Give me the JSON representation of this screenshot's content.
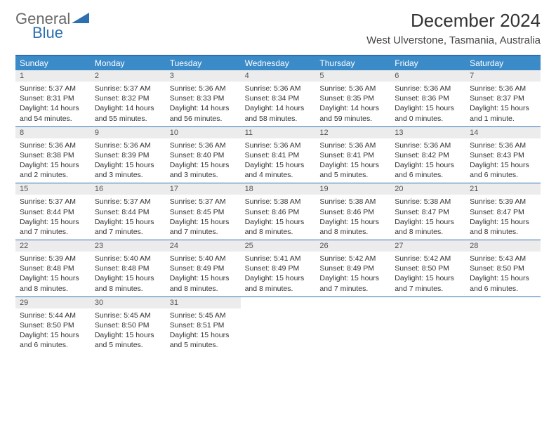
{
  "brand": {
    "general": "General",
    "blue": "Blue"
  },
  "title": "December 2024",
  "location": "West Ulverstone, Tasmania, Australia",
  "colors": {
    "accent": "#2d6fb0",
    "header_bg": "#3b8bc9",
    "daynum_bg": "#ececec",
    "text": "#333333",
    "logo_gray": "#6a6a6a"
  },
  "day_names": [
    "Sunday",
    "Monday",
    "Tuesday",
    "Wednesday",
    "Thursday",
    "Friday",
    "Saturday"
  ],
  "weeks": [
    [
      {
        "n": "1",
        "sr": "Sunrise: 5:37 AM",
        "ss": "Sunset: 8:31 PM",
        "dl1": "Daylight: 14 hours",
        "dl2": "and 54 minutes."
      },
      {
        "n": "2",
        "sr": "Sunrise: 5:37 AM",
        "ss": "Sunset: 8:32 PM",
        "dl1": "Daylight: 14 hours",
        "dl2": "and 55 minutes."
      },
      {
        "n": "3",
        "sr": "Sunrise: 5:36 AM",
        "ss": "Sunset: 8:33 PM",
        "dl1": "Daylight: 14 hours",
        "dl2": "and 56 minutes."
      },
      {
        "n": "4",
        "sr": "Sunrise: 5:36 AM",
        "ss": "Sunset: 8:34 PM",
        "dl1": "Daylight: 14 hours",
        "dl2": "and 58 minutes."
      },
      {
        "n": "5",
        "sr": "Sunrise: 5:36 AM",
        "ss": "Sunset: 8:35 PM",
        "dl1": "Daylight: 14 hours",
        "dl2": "and 59 minutes."
      },
      {
        "n": "6",
        "sr": "Sunrise: 5:36 AM",
        "ss": "Sunset: 8:36 PM",
        "dl1": "Daylight: 15 hours",
        "dl2": "and 0 minutes."
      },
      {
        "n": "7",
        "sr": "Sunrise: 5:36 AM",
        "ss": "Sunset: 8:37 PM",
        "dl1": "Daylight: 15 hours",
        "dl2": "and 1 minute."
      }
    ],
    [
      {
        "n": "8",
        "sr": "Sunrise: 5:36 AM",
        "ss": "Sunset: 8:38 PM",
        "dl1": "Daylight: 15 hours",
        "dl2": "and 2 minutes."
      },
      {
        "n": "9",
        "sr": "Sunrise: 5:36 AM",
        "ss": "Sunset: 8:39 PM",
        "dl1": "Daylight: 15 hours",
        "dl2": "and 3 minutes."
      },
      {
        "n": "10",
        "sr": "Sunrise: 5:36 AM",
        "ss": "Sunset: 8:40 PM",
        "dl1": "Daylight: 15 hours",
        "dl2": "and 3 minutes."
      },
      {
        "n": "11",
        "sr": "Sunrise: 5:36 AM",
        "ss": "Sunset: 8:41 PM",
        "dl1": "Daylight: 15 hours",
        "dl2": "and 4 minutes."
      },
      {
        "n": "12",
        "sr": "Sunrise: 5:36 AM",
        "ss": "Sunset: 8:41 PM",
        "dl1": "Daylight: 15 hours",
        "dl2": "and 5 minutes."
      },
      {
        "n": "13",
        "sr": "Sunrise: 5:36 AM",
        "ss": "Sunset: 8:42 PM",
        "dl1": "Daylight: 15 hours",
        "dl2": "and 6 minutes."
      },
      {
        "n": "14",
        "sr": "Sunrise: 5:36 AM",
        "ss": "Sunset: 8:43 PM",
        "dl1": "Daylight: 15 hours",
        "dl2": "and 6 minutes."
      }
    ],
    [
      {
        "n": "15",
        "sr": "Sunrise: 5:37 AM",
        "ss": "Sunset: 8:44 PM",
        "dl1": "Daylight: 15 hours",
        "dl2": "and 7 minutes."
      },
      {
        "n": "16",
        "sr": "Sunrise: 5:37 AM",
        "ss": "Sunset: 8:44 PM",
        "dl1": "Daylight: 15 hours",
        "dl2": "and 7 minutes."
      },
      {
        "n": "17",
        "sr": "Sunrise: 5:37 AM",
        "ss": "Sunset: 8:45 PM",
        "dl1": "Daylight: 15 hours",
        "dl2": "and 7 minutes."
      },
      {
        "n": "18",
        "sr": "Sunrise: 5:38 AM",
        "ss": "Sunset: 8:46 PM",
        "dl1": "Daylight: 15 hours",
        "dl2": "and 8 minutes."
      },
      {
        "n": "19",
        "sr": "Sunrise: 5:38 AM",
        "ss": "Sunset: 8:46 PM",
        "dl1": "Daylight: 15 hours",
        "dl2": "and 8 minutes."
      },
      {
        "n": "20",
        "sr": "Sunrise: 5:38 AM",
        "ss": "Sunset: 8:47 PM",
        "dl1": "Daylight: 15 hours",
        "dl2": "and 8 minutes."
      },
      {
        "n": "21",
        "sr": "Sunrise: 5:39 AM",
        "ss": "Sunset: 8:47 PM",
        "dl1": "Daylight: 15 hours",
        "dl2": "and 8 minutes."
      }
    ],
    [
      {
        "n": "22",
        "sr": "Sunrise: 5:39 AM",
        "ss": "Sunset: 8:48 PM",
        "dl1": "Daylight: 15 hours",
        "dl2": "and 8 minutes."
      },
      {
        "n": "23",
        "sr": "Sunrise: 5:40 AM",
        "ss": "Sunset: 8:48 PM",
        "dl1": "Daylight: 15 hours",
        "dl2": "and 8 minutes."
      },
      {
        "n": "24",
        "sr": "Sunrise: 5:40 AM",
        "ss": "Sunset: 8:49 PM",
        "dl1": "Daylight: 15 hours",
        "dl2": "and 8 minutes."
      },
      {
        "n": "25",
        "sr": "Sunrise: 5:41 AM",
        "ss": "Sunset: 8:49 PM",
        "dl1": "Daylight: 15 hours",
        "dl2": "and 8 minutes."
      },
      {
        "n": "26",
        "sr": "Sunrise: 5:42 AM",
        "ss": "Sunset: 8:49 PM",
        "dl1": "Daylight: 15 hours",
        "dl2": "and 7 minutes."
      },
      {
        "n": "27",
        "sr": "Sunrise: 5:42 AM",
        "ss": "Sunset: 8:50 PM",
        "dl1": "Daylight: 15 hours",
        "dl2": "and 7 minutes."
      },
      {
        "n": "28",
        "sr": "Sunrise: 5:43 AM",
        "ss": "Sunset: 8:50 PM",
        "dl1": "Daylight: 15 hours",
        "dl2": "and 6 minutes."
      }
    ],
    [
      {
        "n": "29",
        "sr": "Sunrise: 5:44 AM",
        "ss": "Sunset: 8:50 PM",
        "dl1": "Daylight: 15 hours",
        "dl2": "and 6 minutes."
      },
      {
        "n": "30",
        "sr": "Sunrise: 5:45 AM",
        "ss": "Sunset: 8:50 PM",
        "dl1": "Daylight: 15 hours",
        "dl2": "and 5 minutes."
      },
      {
        "n": "31",
        "sr": "Sunrise: 5:45 AM",
        "ss": "Sunset: 8:51 PM",
        "dl1": "Daylight: 15 hours",
        "dl2": "and 5 minutes."
      },
      {
        "empty": true
      },
      {
        "empty": true
      },
      {
        "empty": true
      },
      {
        "empty": true
      }
    ]
  ]
}
